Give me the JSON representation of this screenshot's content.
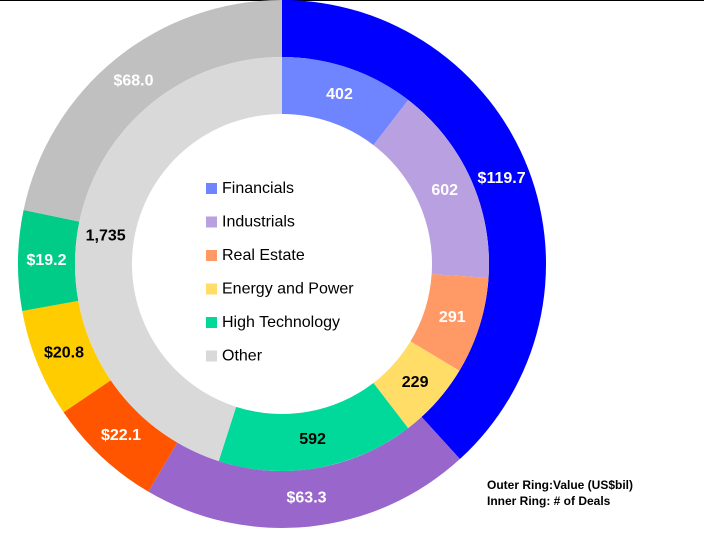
{
  "chart_data": {
    "type": "donut",
    "categories": [
      "Financials",
      "Industrials",
      "Real Estate",
      "Energy and Power",
      "High Technology",
      "Other"
    ],
    "series": [
      {
        "values": [
          119.7,
          63.3,
          22.1,
          20.8,
          19.2,
          68.0
        ],
        "value_labels": [
          "$119.7",
          "$63.3",
          "$22.1",
          "$20.8",
          "$19.2",
          "$68.0"
        ],
        "colors": [
          "#0000ff",
          "#9966cc",
          "#ff5500",
          "#ffcc00",
          "#00cc88",
          "#c0c0c0"
        ],
        "label_colors": [
          "#ffffff",
          "#ffffff",
          "#ffffff",
          "#000000",
          "#ffffff",
          "#ffffff"
        ]
      },
      {
        "values": [
          402,
          602,
          291,
          229,
          592,
          1735
        ],
        "value_labels": [
          "402",
          "602",
          "291",
          "229",
          "592",
          "1,735"
        ],
        "colors": [
          "#6f84ff",
          "#b9a0e0",
          "#ff9966",
          "#ffdd66",
          "#00d99a",
          "#d9d9d9"
        ],
        "label_colors": [
          "#ffffff",
          "#ffffff",
          "#ffffff",
          "#000000",
          "#000000",
          "#000000"
        ]
      }
    ],
    "annotations": [
      "Outer Ring:Value (US$bil)",
      "Inner Ring: # of Deals"
    ]
  }
}
